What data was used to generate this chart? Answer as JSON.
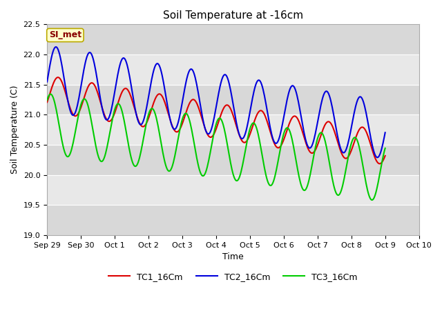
{
  "title": "Soil Temperature at -16cm",
  "xlabel": "Time",
  "ylabel": "Soil Temperature (C)",
  "ylim": [
    19.0,
    22.5
  ],
  "xlim_days": [
    0,
    11
  ],
  "x_ticks_labels": [
    "Sep 29",
    "Sep 30",
    "Oct 1",
    "Oct 2",
    "Oct 3",
    "Oct 4",
    "Oct 5",
    "Oct 6",
    "Oct 7",
    "Oct 8",
    "Oct 9",
    "Oct 10"
  ],
  "annotation_text": "SI_met",
  "annotation_bg": "#ffffcc",
  "annotation_border": "#bbaa00",
  "annotation_text_color": "#880000",
  "background_color": "#ffffff",
  "plot_bg_light": "#e8e8e8",
  "plot_bg_dark": "#d8d8d8",
  "grid_color": "#ffffff",
  "line_colors": [
    "#dd0000",
    "#0000dd",
    "#00cc00"
  ],
  "line_width": 1.5,
  "legend_labels": [
    "TC1_16Cm",
    "TC2_16Cm",
    "TC3_16Cm"
  ]
}
